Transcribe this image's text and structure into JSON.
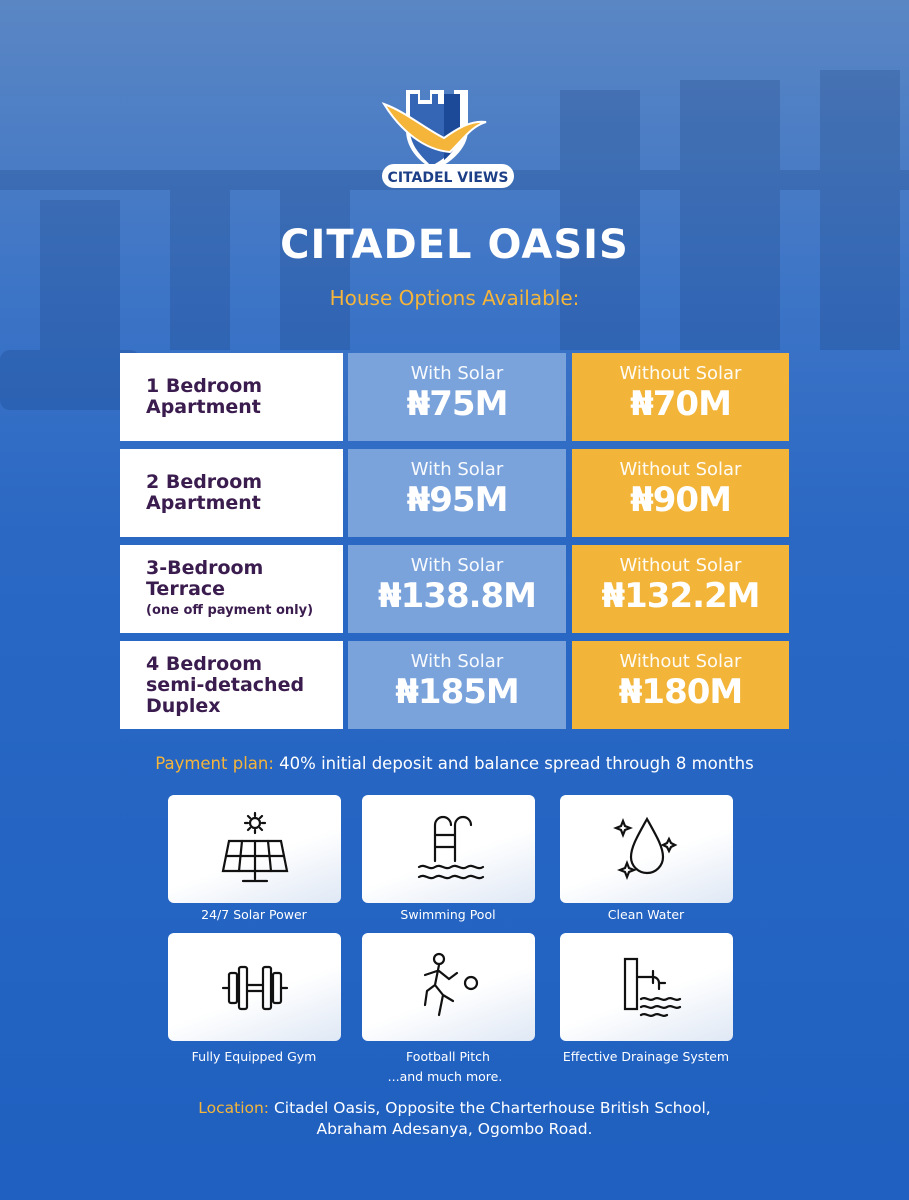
{
  "brand": {
    "logo_text": "CITADEL VIEWS"
  },
  "title": "CITADEL OASIS",
  "subtitle": "House Options Available:",
  "colors": {
    "background": "#2a68c4",
    "accent": "#f2b53a",
    "solar_cell": "#7aa3dc",
    "label_text": "#3b1c4e"
  },
  "options": [
    {
      "name_line1": "1 Bedroom",
      "name_line2": "Apartment",
      "note": "",
      "with_solar_label": "With Solar",
      "with_solar_price": "₦75M",
      "without_solar_label": "Without Solar",
      "without_solar_price": "₦70M"
    },
    {
      "name_line1": "2 Bedroom",
      "name_line2": "Apartment",
      "note": "",
      "with_solar_label": "With Solar",
      "with_solar_price": "₦95M",
      "without_solar_label": "Without Solar",
      "without_solar_price": "₦90M"
    },
    {
      "name_line1": "3-Bedroom",
      "name_line2": "Terrace",
      "note": "(one off payment only)",
      "with_solar_label": "With Solar",
      "with_solar_price": "₦138.8M",
      "without_solar_label": "Without Solar",
      "without_solar_price": "₦132.2M"
    },
    {
      "name_line1": "4 Bedroom",
      "name_line2": "semi-detached",
      "note": "Duplex",
      "with_solar_label": "With Solar",
      "with_solar_price": "₦185M",
      "without_solar_label": "Without Solar",
      "without_solar_price": "₦180M"
    }
  ],
  "payment": {
    "label": "Payment plan:",
    "text": " 40% initial deposit and balance spread through 8 months"
  },
  "amenities": [
    {
      "label": "24/7 Solar Power",
      "icon": "solar-panel-icon"
    },
    {
      "label": "Swimming Pool",
      "icon": "pool-ladder-icon"
    },
    {
      "label": "Clean Water",
      "icon": "water-drop-icon"
    },
    {
      "label": "Fully Equipped Gym",
      "icon": "dumbbell-icon"
    },
    {
      "label": "Football Pitch",
      "icon": "football-player-icon"
    },
    {
      "label": "Effective Drainage System",
      "icon": "drainage-icon"
    }
  ],
  "more": "...and much more.",
  "location": {
    "label": "Location:",
    "line1": " Citadel Oasis, Opposite the Charterhouse British School,",
    "line2": "Abraham Adesanya, Ogombo Road."
  }
}
